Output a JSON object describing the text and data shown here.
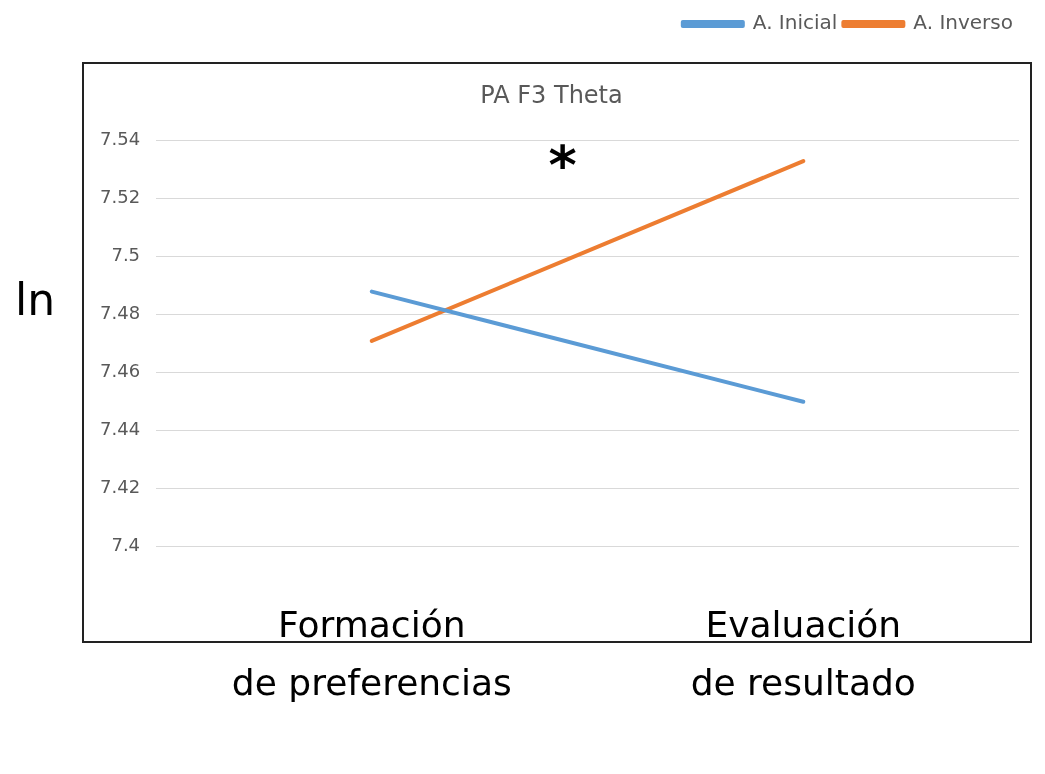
{
  "chart_data": {
    "type": "line",
    "title": "PA F3 Theta",
    "ylabel": "ln",
    "categories": [
      "Formación de preferencias",
      "Evaluación de resultado"
    ],
    "series": [
      {
        "name": "A. Inicial",
        "color": "#5b9bd5",
        "values": [
          7.488,
          7.45
        ]
      },
      {
        "name": "A. Inverso",
        "color": "#ed7d31",
        "values": [
          7.471,
          7.533
        ]
      }
    ],
    "ylim": [
      7.4,
      7.54
    ],
    "yticks": [
      7.4,
      7.42,
      7.44,
      7.46,
      7.48,
      7.5,
      7.52,
      7.54
    ],
    "grid": "y",
    "legend": "top right",
    "marker": "none",
    "line_style": "solid",
    "annotations": [
      "*"
    ]
  }
}
